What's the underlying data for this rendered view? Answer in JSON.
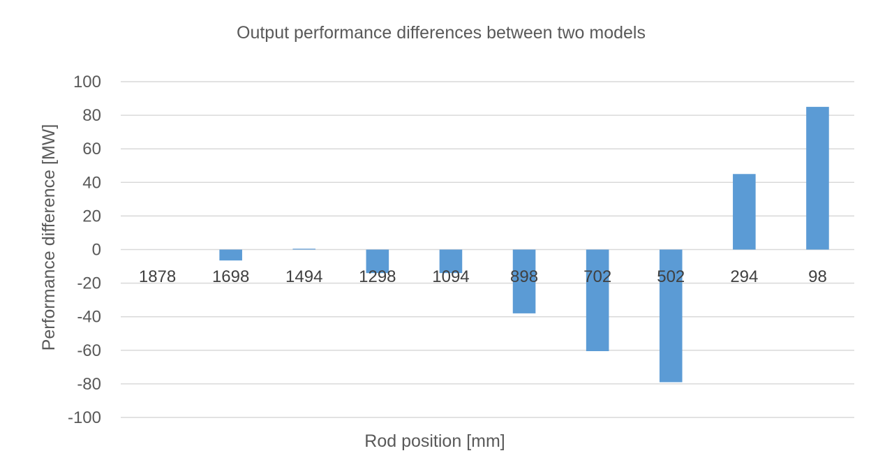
{
  "chart_data": {
    "type": "bar",
    "title": "Output performance differences between two models",
    "xlabel": "Rod position [mm]",
    "ylabel": "Performance difference [MW]",
    "categories": [
      "1878",
      "1698",
      "1494",
      "1298",
      "1094",
      "898",
      "702",
      "502",
      "294",
      "98"
    ],
    "series": [
      {
        "values": [
          0,
          -6.5,
          0.5,
          -14,
          -14,
          -38,
          -60.5,
          -79,
          45,
          85
        ],
        "color": "#5b9bd5"
      }
    ],
    "ylim": [
      -100,
      100
    ],
    "yticks": [
      100,
      80,
      60,
      40,
      20,
      0,
      -20,
      -40,
      -60,
      -80,
      -100
    ],
    "grid": true,
    "gridColor": "#d9d9d9",
    "legend": "none"
  }
}
